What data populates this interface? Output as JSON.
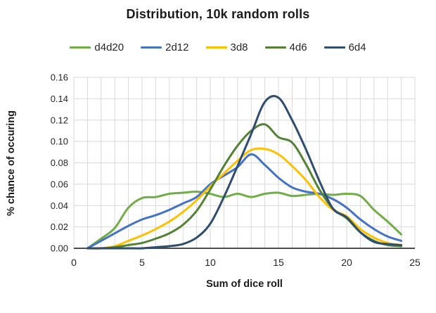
{
  "chart_data": {
    "type": "line",
    "title": "Distribution, 10k random rolls",
    "xlabel": "Sum of dice roll",
    "ylabel": "% chance of occuring",
    "xlim": [
      0,
      25
    ],
    "ylim": [
      0,
      0.16
    ],
    "x_ticks": [
      0,
      5,
      10,
      15,
      20,
      25
    ],
    "y_ticks": [
      "0.00",
      "0.02",
      "0.04",
      "0.06",
      "0.08",
      "0.10",
      "0.12",
      "0.14",
      "0.16"
    ],
    "grid": {
      "vertical_step": 1,
      "horizontal_step": 0.02,
      "color": "#d9d9d9",
      "axis_color": "#4d4d4d"
    },
    "legend_position": "top",
    "line_smoothing": true,
    "x": [
      1,
      2,
      3,
      4,
      5,
      6,
      7,
      8,
      9,
      10,
      11,
      12,
      13,
      14,
      15,
      16,
      17,
      18,
      19,
      20,
      21,
      22,
      23,
      24
    ],
    "series": [
      {
        "name": "d4d20",
        "color": "#70ad47",
        "values": [
          0,
          0.009,
          0.019,
          0.038,
          0.047,
          0.048,
          0.051,
          0.052,
          0.053,
          0.051,
          0.048,
          0.051,
          0.048,
          0.051,
          0.052,
          0.049,
          0.05,
          0.051,
          0.05,
          0.051,
          0.049,
          0.036,
          0.025,
          0.013
        ]
      },
      {
        "name": "2d12",
        "color": "#4472c4",
        "values": [
          0,
          0.007,
          0.014,
          0.021,
          0.027,
          0.031,
          0.036,
          0.042,
          0.048,
          0.06,
          0.068,
          0.076,
          0.088,
          0.078,
          0.066,
          0.057,
          0.053,
          0.051,
          0.046,
          0.038,
          0.027,
          0.018,
          0.011,
          0.007
        ]
      },
      {
        "name": "3d8",
        "color": "#ffc000",
        "values": [
          0,
          0.0,
          0.002,
          0.007,
          0.012,
          0.018,
          0.025,
          0.034,
          0.045,
          0.058,
          0.07,
          0.082,
          0.092,
          0.093,
          0.088,
          0.077,
          0.064,
          0.048,
          0.036,
          0.03,
          0.018,
          0.01,
          0.005,
          0.003
        ]
      },
      {
        "name": "4d6",
        "color": "#548235",
        "values": [
          0,
          0.0,
          0.001,
          0.003,
          0.005,
          0.009,
          0.014,
          0.022,
          0.035,
          0.055,
          0.077,
          0.096,
          0.11,
          0.116,
          0.104,
          0.099,
          0.079,
          0.055,
          0.037,
          0.028,
          0.015,
          0.007,
          0.003,
          0.002
        ]
      },
      {
        "name": "6d4",
        "color": "#2e4d6f",
        "values": [
          0,
          0.0,
          0.0,
          0.0,
          0.0,
          0.001,
          0.002,
          0.004,
          0.01,
          0.023,
          0.048,
          0.077,
          0.107,
          0.137,
          0.141,
          0.12,
          0.093,
          0.063,
          0.037,
          0.029,
          0.015,
          0.006,
          0.004,
          0.003
        ]
      }
    ]
  }
}
